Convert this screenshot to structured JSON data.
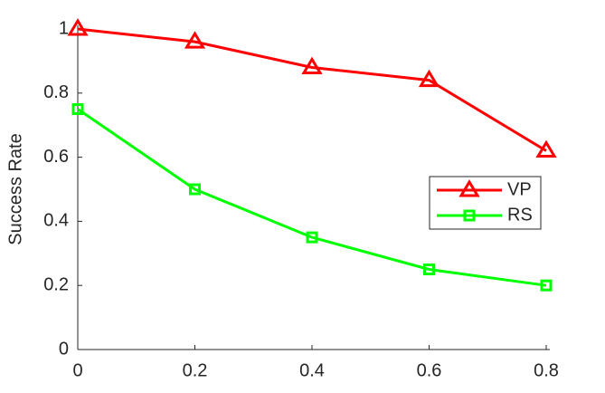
{
  "chart_data": {
    "type": "line",
    "y_label": "Success Rate",
    "x": [
      0,
      0.2,
      0.4,
      0.6,
      0.8
    ],
    "series": [
      {
        "name": "VP",
        "color": "#ff0000",
        "marker": "triangle",
        "values": [
          1,
          0.96,
          0.88,
          0.84,
          0.62
        ]
      },
      {
        "name": "RS",
        "color": "#00ff00",
        "marker": "square",
        "values": [
          0.75,
          0.5,
          0.35,
          0.25,
          0.2
        ]
      }
    ],
    "xlim": [
      0,
      0.8
    ],
    "xticks": [
      0,
      0.2,
      0.4,
      0.6,
      0.8
    ],
    "ylim": [
      0,
      1
    ],
    "yticks": [
      0,
      0.2,
      0.4,
      0.6,
      0.8,
      1
    ],
    "legend": "east"
  }
}
